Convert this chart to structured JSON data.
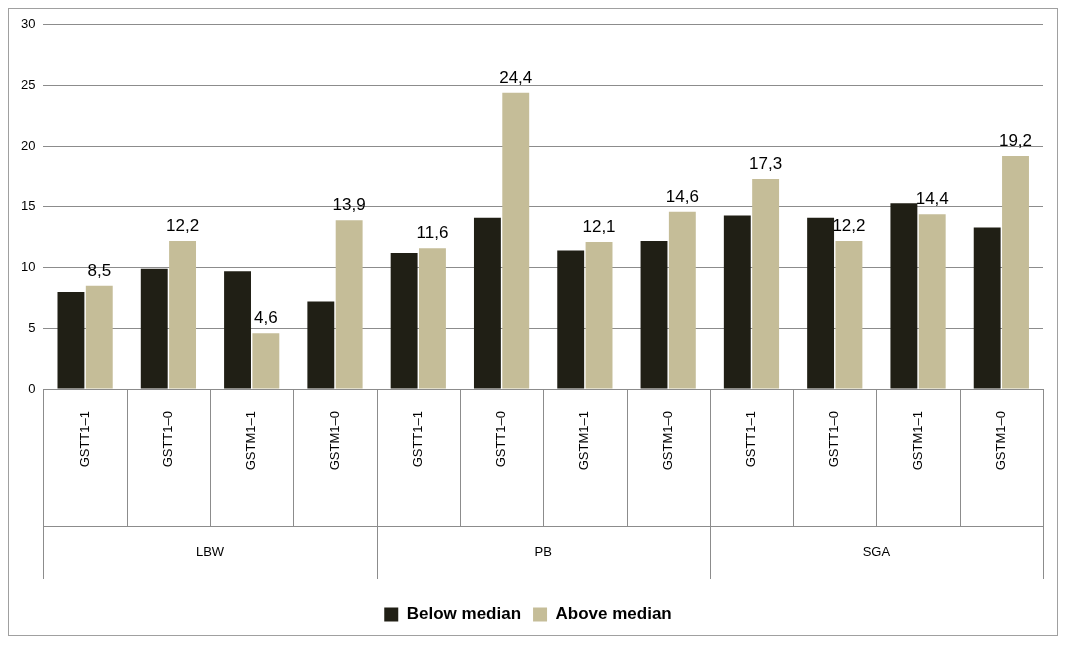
{
  "chart_data": {
    "type": "bar",
    "categories": [
      "GSTT1–1",
      "GSTT1–0",
      "GSTM1–1",
      "GSTM1–0",
      "GSTT1–1",
      "GSTT1–0",
      "GSTM1–1",
      "GSTM1–0",
      "GSTT1–1",
      "GSTT1–0",
      "GSTM1–1",
      "GSTM1–0"
    ],
    "annotations": [
      "LBW",
      "PB",
      "SGA"
    ],
    "series": [
      {
        "name": "Below median",
        "color": "#201f15",
        "values": [
          8.0,
          9.9,
          9.7,
          7.2,
          11.2,
          14.1,
          11.4,
          12.2,
          14.3,
          14.1,
          15.3,
          13.3
        ]
      },
      {
        "name": "Above median",
        "color": "#c5bd98",
        "values": [
          8.5,
          12.2,
          4.6,
          13.9,
          11.6,
          24.4,
          12.1,
          14.6,
          17.3,
          12.2,
          14.4,
          19.2
        ],
        "value_labels": [
          "8,5",
          "12,2",
          "4,6",
          "13,9",
          "11,6",
          "24,4",
          "12,1",
          "14,6",
          "17,3",
          "12,2",
          "14,4",
          "19,2"
        ]
      }
    ],
    "ylim": [
      0,
      30
    ],
    "yticks": [
      0,
      5,
      10,
      15,
      20,
      25,
      30
    ],
    "grid": "y",
    "legend": "bottom"
  }
}
